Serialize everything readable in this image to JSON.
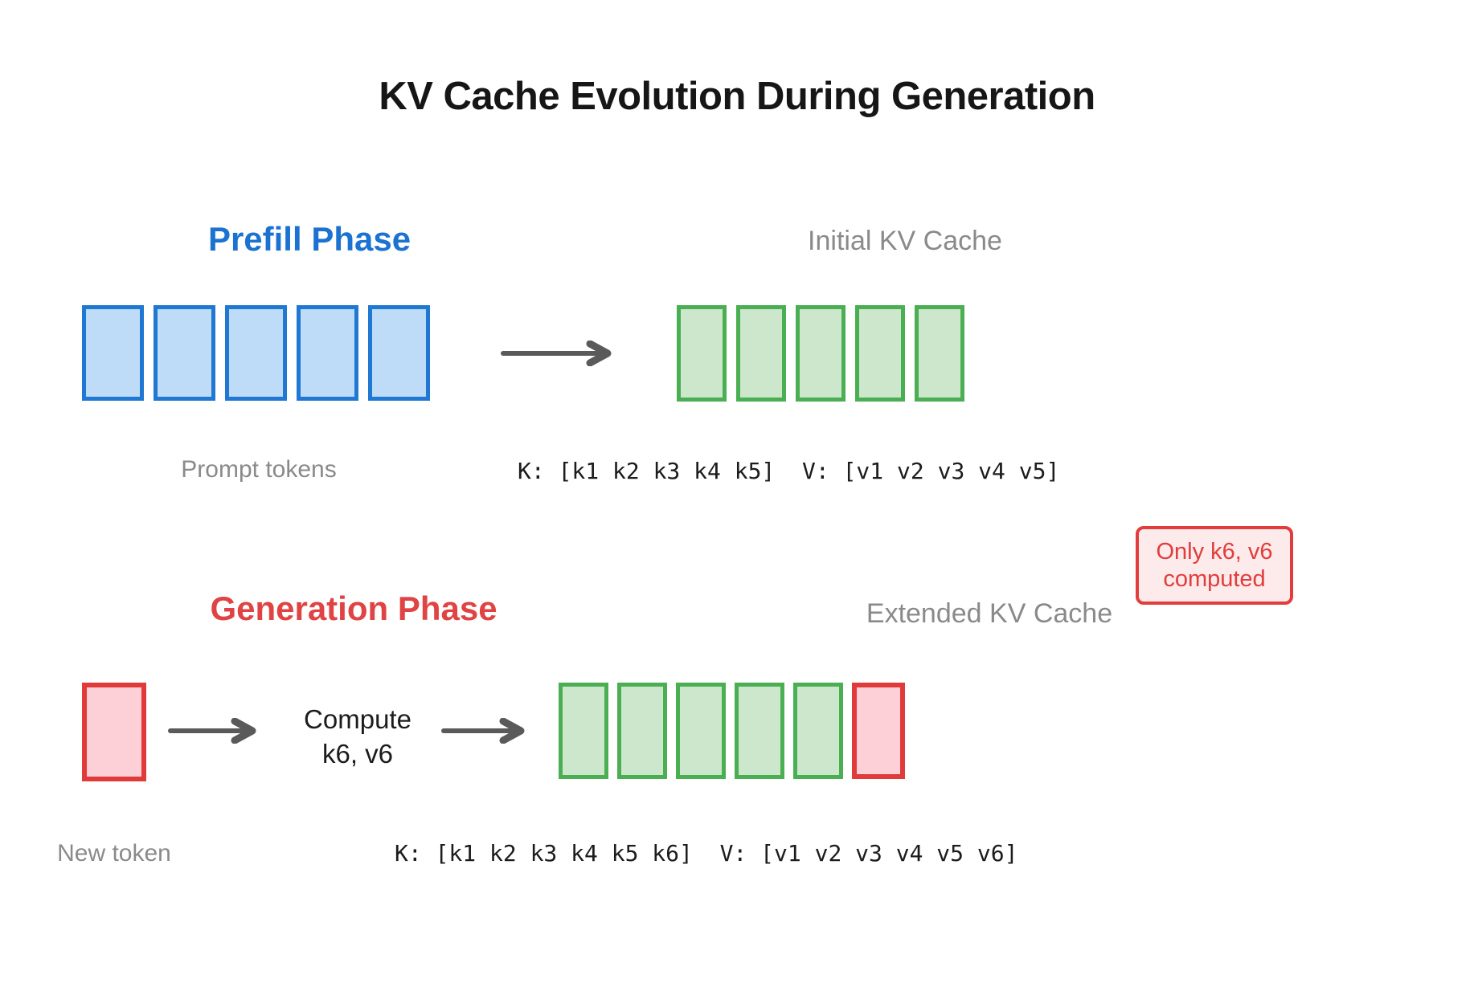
{
  "title": "KV Cache Evolution During Generation",
  "colors": {
    "blue_border": "#1f78d1",
    "blue_fill": "#bedcf7",
    "green_border": "#4aae52",
    "green_fill": "#cde7cd",
    "red_border": "#e03a3a",
    "red_fill": "#fcd0d6",
    "annotation_red": "#e23c3c",
    "annotation_fill": "#fdeaea",
    "gray_label": "#8a8a8a",
    "arrow_gray": "#5a5a5a",
    "prefill_label_blue": "#1b72d0",
    "generation_label_red": "#e04343"
  },
  "prefill": {
    "phase_label": "Prefill Phase",
    "cache_label": "Initial KV Cache",
    "tokens_label": "Prompt tokens",
    "prompt_token_count": 5,
    "cache_token_count": 5,
    "kv_line": "K: [k1 k2 k3 k4 k5]  V: [v1 v2 v3 v4 v5]"
  },
  "generation": {
    "phase_label": "Generation Phase",
    "cache_label": "Extended KV Cache",
    "new_token_label": "New token",
    "compute_line1": "Compute",
    "compute_line2": "k6, v6",
    "cached_token_count": 5,
    "new_token_count": 1,
    "kv_line": "K: [k1 k2 k3 k4 k5 k6]  V: [v1 v2 v3 v4 v5 v6]"
  },
  "annotation": {
    "line1": "Only k6, v6",
    "line2": "computed"
  }
}
